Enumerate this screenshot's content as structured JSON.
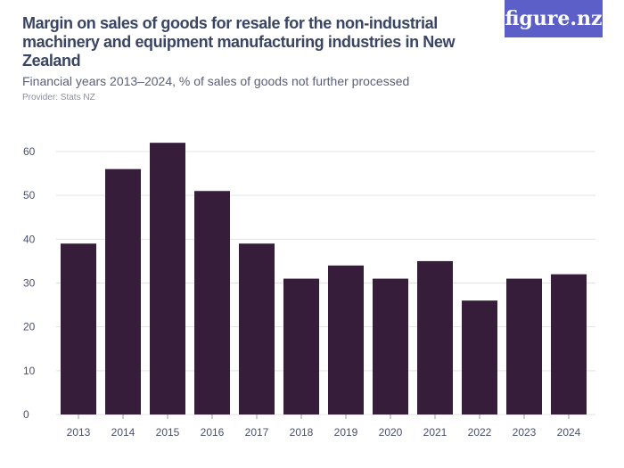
{
  "header": {
    "title": "Margin on sales of goods for resale for the non-industrial machinery and equipment manufacturing industries in New Zealand",
    "subtitle": "Financial years 2013–2024, % of sales of goods not further processed",
    "provider": "Provider: Stats NZ",
    "logo": "figure.nz"
  },
  "colors": {
    "bar": "#361e3b",
    "grid": "#e3e3e3",
    "logo_bg": "#5b5fc7"
  },
  "chart_data": {
    "type": "bar",
    "title": "Margin on sales of goods for resale for the non-industrial machinery and equipment manufacturing industries in New Zealand",
    "subtitle": "Financial years 2013–2024, % of sales of goods not further processed",
    "categories": [
      "2013",
      "2014",
      "2015",
      "2016",
      "2017",
      "2018",
      "2019",
      "2020",
      "2021",
      "2022",
      "2023",
      "2024"
    ],
    "values": [
      39,
      56,
      62,
      51,
      39,
      31,
      34,
      31,
      35,
      26,
      31,
      32
    ],
    "ylim": [
      0,
      60
    ],
    "yticks": [
      0,
      10,
      20,
      30,
      40,
      50,
      60
    ],
    "grid": true,
    "xlabel": "",
    "ylabel": ""
  }
}
